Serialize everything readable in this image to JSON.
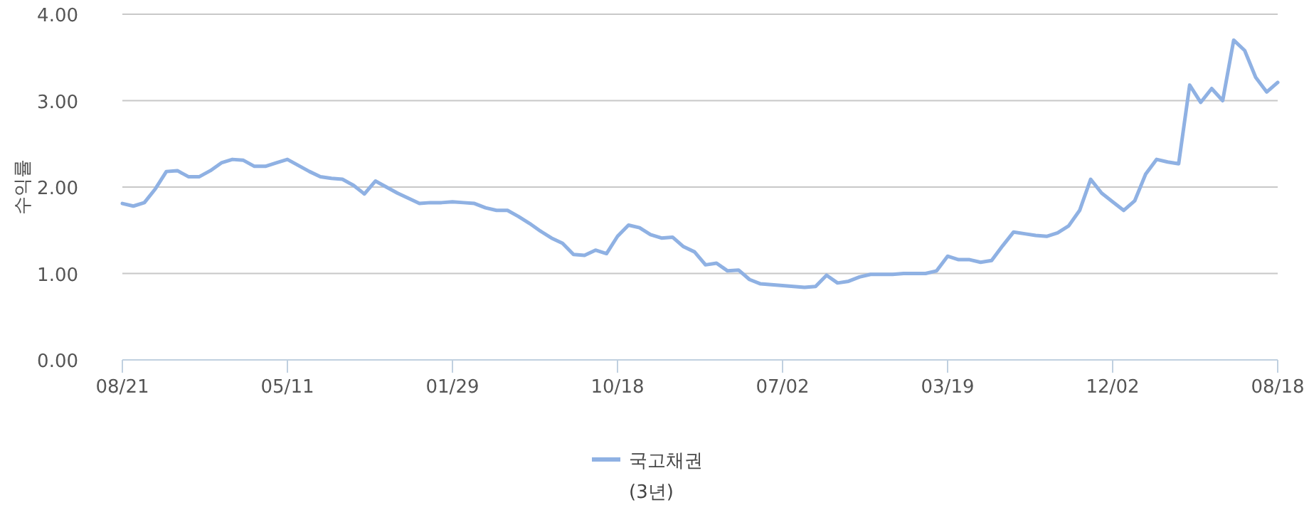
{
  "chart_data": {
    "type": "line",
    "ylabel": "수익률",
    "legend": "bottom",
    "grid": "y",
    "line_style": "solid",
    "marker": "none",
    "categories": [
      "08/21",
      null,
      null,
      null,
      null,
      null,
      null,
      null,
      null,
      null,
      null,
      null,
      null,
      null,
      null,
      "05/11",
      null,
      null,
      null,
      null,
      null,
      null,
      null,
      null,
      null,
      null,
      null,
      null,
      null,
      null,
      "01/29",
      null,
      null,
      null,
      null,
      null,
      null,
      null,
      null,
      null,
      null,
      null,
      null,
      null,
      null,
      "10/18",
      null,
      null,
      null,
      null,
      null,
      null,
      null,
      null,
      null,
      null,
      null,
      null,
      null,
      null,
      "07/02",
      null,
      null,
      null,
      null,
      null,
      null,
      null,
      null,
      null,
      null,
      null,
      null,
      null,
      null,
      "03/19",
      null,
      null,
      null,
      null,
      null,
      null,
      null,
      null,
      null,
      null,
      null,
      null,
      null,
      null,
      "12/02",
      null,
      null,
      null,
      null,
      null,
      null,
      null,
      null,
      null,
      null,
      null,
      null,
      null,
      null,
      "08/18"
    ],
    "ylim": [
      0,
      4
    ],
    "yticks": [
      {
        "value": 0,
        "label": "0.00"
      },
      {
        "value": 1,
        "label": "1.00"
      },
      {
        "value": 2,
        "label": "2.00"
      },
      {
        "value": 3,
        "label": "3.00"
      },
      {
        "value": 4,
        "label": "4.00"
      }
    ],
    "series": [
      {
        "name": "국고채권 (3년)",
        "color": "#8fb1e3",
        "values": [
          1.81,
          1.78,
          1.82,
          1.98,
          2.18,
          2.19,
          2.12,
          2.12,
          2.19,
          2.28,
          2.32,
          2.31,
          2.24,
          2.24,
          2.28,
          2.32,
          2.25,
          2.18,
          2.12,
          2.1,
          2.09,
          2.02,
          1.92,
          2.07,
          2.0,
          1.93,
          1.87,
          1.81,
          1.82,
          1.82,
          1.83,
          1.82,
          1.81,
          1.76,
          1.73,
          1.73,
          1.66,
          1.58,
          1.49,
          1.41,
          1.35,
          1.22,
          1.21,
          1.27,
          1.23,
          1.43,
          1.56,
          1.53,
          1.45,
          1.41,
          1.42,
          1.31,
          1.25,
          1.1,
          1.12,
          1.03,
          1.04,
          0.93,
          0.88,
          0.87,
          0.86,
          0.85,
          0.84,
          0.85,
          0.98,
          0.89,
          0.91,
          0.96,
          0.99,
          0.99,
          0.99,
          1.0,
          1.0,
          1.0,
          1.03,
          1.2,
          1.16,
          1.16,
          1.13,
          1.15,
          1.32,
          1.48,
          1.46,
          1.44,
          1.43,
          1.47,
          1.55,
          1.73,
          2.09,
          1.93,
          1.83,
          1.73,
          1.84,
          2.15,
          2.32,
          2.29,
          2.27,
          3.18,
          2.98,
          3.14,
          3.0,
          3.7,
          3.58,
          3.27,
          3.1,
          3.21
        ]
      }
    ]
  }
}
